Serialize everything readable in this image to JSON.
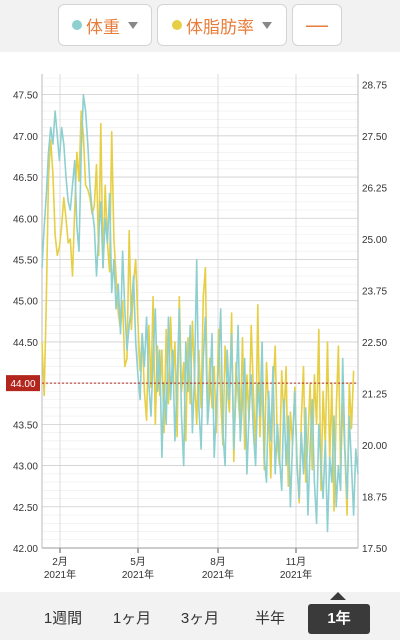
{
  "header": {
    "weight_label": "体重",
    "bodyfat_label": "体脂肪率",
    "extra_label": "—"
  },
  "colors": {
    "weight": "#8ecfcf",
    "bodyfat": "#e6cf45",
    "accent_text": "#e87c3a",
    "marker": "#b3261e"
  },
  "marker_value": "44.00",
  "tabs": [
    "1週間",
    "1ヶ月",
    "3ヶ月",
    "半年",
    "1年"
  ],
  "active_tab": "1年",
  "chart_data": {
    "type": "line",
    "x_labels": [
      {
        "month": "2月",
        "year": "2021年"
      },
      {
        "month": "5月",
        "year": "2021年"
      },
      {
        "month": "8月",
        "year": "2021年"
      },
      {
        "month": "11月",
        "year": "2021年"
      }
    ],
    "y_left_ticks": [
      "47.50",
      "47.00",
      "46.50",
      "46.00",
      "45.50",
      "45.00",
      "44.50",
      "44.00",
      "43.50",
      "43.00",
      "42.50",
      "42.00"
    ],
    "y_right_ticks": [
      "28.75",
      "27.50",
      "26.25",
      "25.00",
      "23.75",
      "22.50",
      "21.25",
      "20.00",
      "18.75",
      "17.50"
    ],
    "ylim_left": [
      42.0,
      47.75
    ],
    "ylim_right": [
      17.5,
      29.0
    ],
    "grid": true,
    "series": [
      {
        "name": "体重",
        "axis": "left",
        "values": [
          45.4,
          45.9,
          46.3,
          46.8,
          47.1,
          46.9,
          47.3,
          47.0,
          46.7,
          47.1,
          46.9,
          46.5,
          46.2,
          46.1,
          46.4,
          46.7,
          45.9,
          45.6,
          46.8,
          47.5,
          47.3,
          46.9,
          46.4,
          46.1,
          45.9,
          45.3,
          45.8,
          46.2,
          45.4,
          46.0,
          45.7,
          46.3,
          45.1,
          45.5,
          44.9,
          45.2,
          44.6,
          45.6,
          44.9,
          44.4,
          44.7,
          44.9,
          45.3,
          44.5,
          44.1,
          43.8,
          44.6,
          44.2,
          44.8,
          44.0,
          43.6,
          44.3,
          44.9,
          43.9,
          44.4,
          43.1,
          44.0,
          43.5,
          44.8,
          43.8,
          44.4,
          43.3,
          44.0,
          44.9,
          43.6,
          43.0,
          44.5,
          43.9,
          44.7,
          43.4,
          44.1,
          45.5,
          43.7,
          43.2,
          44.3,
          44.8,
          43.5,
          43.9,
          44.6,
          43.1,
          43.7,
          44.2,
          44.9,
          43.4,
          43.0,
          44.4,
          43.8,
          44.6,
          43.2,
          43.9,
          44.7,
          43.3,
          43.8,
          44.3,
          42.9,
          43.6,
          44.1,
          43.4,
          43.0,
          44.0,
          43.6,
          44.5,
          43.1,
          42.8,
          43.9,
          43.3,
          44.2,
          42.9,
          43.5,
          43.1,
          42.7,
          43.8,
          43.0,
          43.6,
          42.5,
          43.3,
          43.9,
          43.0,
          42.6,
          43.4,
          42.9,
          43.7,
          42.4,
          43.2,
          43.8,
          42.8,
          42.3,
          43.5,
          43.0,
          42.6,
          43.3,
          42.2,
          43.1,
          42.8,
          43.6,
          42.5,
          43.0,
          42.7,
          44.3,
          43.2,
          42.6,
          43.6,
          43.0,
          42.4,
          43.2,
          42.9
        ]
      },
      {
        "name": "体脂肪率",
        "axis": "right",
        "values": [
          22.5,
          21.2,
          23.6,
          26.5,
          27.4,
          26.6,
          25.1,
          24.6,
          24.8,
          25.3,
          26.0,
          25.5,
          24.9,
          25.0,
          24.1,
          25.7,
          27.1,
          26.4,
          28.1,
          27.5,
          26.3,
          26.2,
          26.0,
          25.6,
          25.8,
          26.8,
          24.6,
          27.8,
          24.3,
          26.3,
          24.9,
          24.2,
          27.6,
          25.0,
          24.1,
          23.2,
          22.8,
          23.5,
          21.9,
          22.1,
          25.2,
          22.8,
          23.9,
          24.5,
          23.0,
          21.8,
          22.7,
          21.3,
          20.6,
          22.9,
          21.4,
          23.6,
          20.5,
          22.4,
          21.2,
          22.3,
          20.3,
          22.8,
          21.0,
          23.1,
          21.5,
          22.5,
          20.2,
          23.6,
          21.3,
          22.0,
          20.1,
          22.6,
          21.0,
          23.0,
          21.6,
          20.5,
          22.3,
          20.9,
          23.6,
          24.3,
          20.6,
          22.1,
          20.9,
          21.9,
          20.3,
          22.8,
          21.1,
          20.0,
          22.4,
          21.4,
          20.8,
          23.2,
          19.6,
          22.0,
          21.2,
          20.4,
          22.6,
          19.9,
          21.7,
          20.6,
          22.9,
          21.3,
          19.8,
          23.4,
          20.2,
          21.6,
          19.4,
          22.0,
          20.9,
          19.2,
          21.3,
          22.4,
          20.0,
          19.5,
          21.8,
          20.6,
          21.9,
          19.0,
          20.8,
          20.0,
          21.4,
          19.6,
          18.6,
          20.6,
          21.9,
          19.1,
          20.1,
          21.5,
          19.4,
          21.7,
          20.5,
          22.8,
          18.9,
          21.3,
          20.0,
          22.5,
          19.6,
          21.5,
          18.4,
          20.8,
          22.4,
          19.4,
          21.0,
          19.8,
          18.3,
          21.5,
          20.4,
          21.8
        ]
      }
    ]
  }
}
